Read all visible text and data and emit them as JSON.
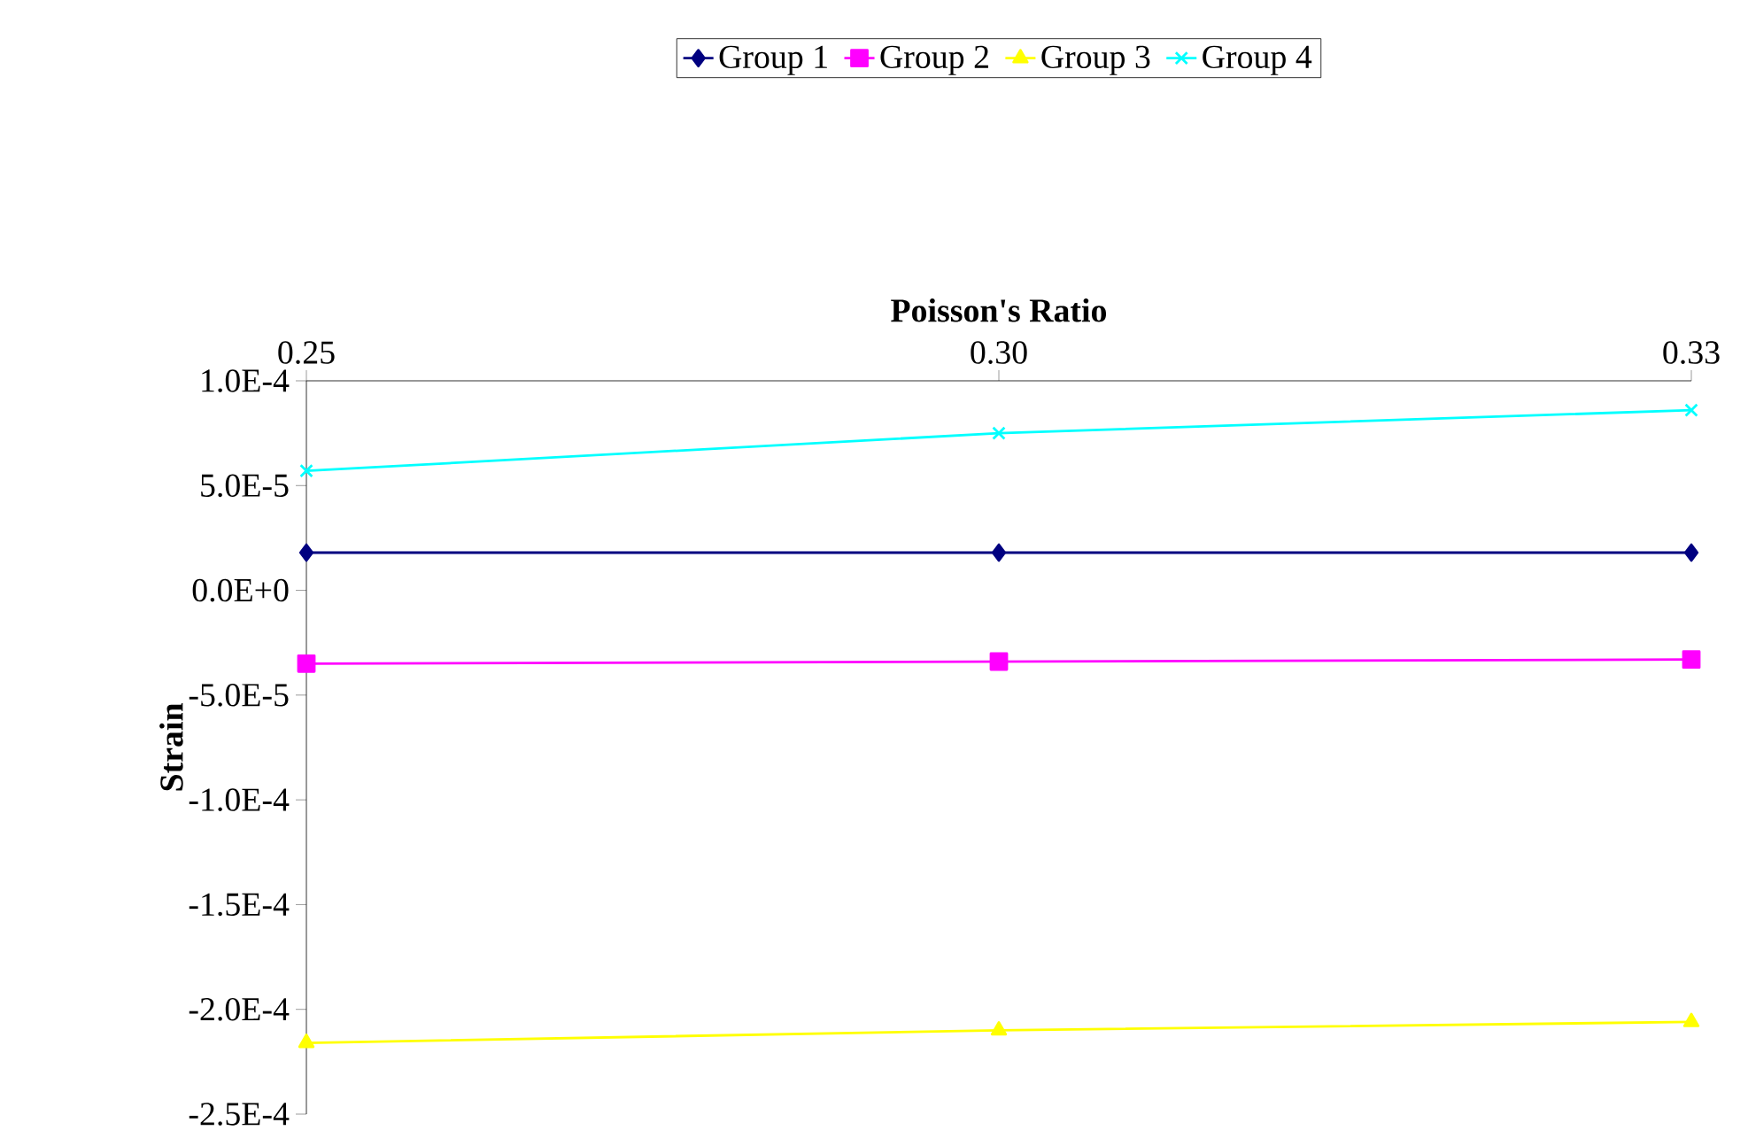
{
  "chart_data": {
    "type": "line",
    "xlabel": "Poisson's Ratio",
    "ylabel": "Strain",
    "categories": [
      "0.25",
      "0.30",
      "0.33"
    ],
    "series": [
      {
        "name": "Group 1",
        "color": "#000080",
        "marker": "diamond",
        "values": [
          1.8e-05,
          1.8e-05,
          1.8e-05
        ]
      },
      {
        "name": "Group 2",
        "color": "#ff00ff",
        "marker": "square",
        "values": [
          -3.5e-05,
          -3.4e-05,
          -3.3e-05
        ]
      },
      {
        "name": "Group 3",
        "color": "#ffff00",
        "marker": "triangle",
        "values": [
          -0.000216,
          -0.00021,
          -0.000206
        ]
      },
      {
        "name": "Group 4",
        "color": "#00ffff",
        "marker": "cross",
        "values": [
          5.7e-05,
          7.5e-05,
          8.6e-05
        ]
      }
    ],
    "ylim": [
      -0.00025,
      0.0001
    ],
    "yticks": [
      {
        "value": -0.00025,
        "label": "-2.5E-4"
      },
      {
        "value": -0.0002,
        "label": "-2.0E-4"
      },
      {
        "value": -0.00015,
        "label": "-1.5E-4"
      },
      {
        "value": -0.0001,
        "label": "-1.0E-4"
      },
      {
        "value": -5e-05,
        "label": "-5.0E-5"
      },
      {
        "value": 0,
        "label": "0.0E+0"
      },
      {
        "value": 5e-05,
        "label": "5.0E-5"
      },
      {
        "value": 0.0001,
        "label": "1.0E-4"
      }
    ],
    "grid": false,
    "legend": "top",
    "line_style": "solid"
  }
}
